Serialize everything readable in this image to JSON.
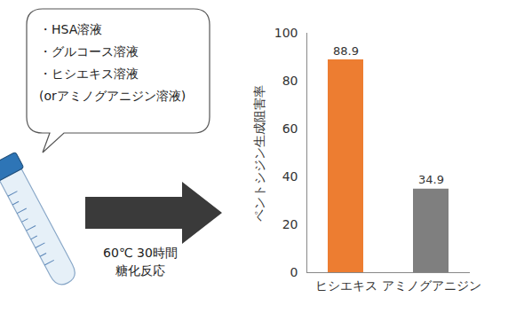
{
  "chart_data": {
    "type": "bar",
    "categories": [
      "ヒシエキス",
      "アミノグアニジン"
    ],
    "values": [
      88.9,
      34.9
    ],
    "colors": [
      "#ed7d31",
      "#7f7f7f"
    ],
    "y_label": "ペントシジン生成阻害率",
    "annotations": [
      "(%)"
    ],
    "ylim": [
      0,
      100
    ],
    "yticks": [
      0,
      20,
      40,
      60,
      80,
      100
    ],
    "grid": false,
    "data_labels": true
  },
  "diagram": {
    "bubble_items": [
      "・HSA溶液",
      "・グルコース溶液",
      "・ヒシエキス溶液",
      "(orアミノグアニジン溶液)"
    ],
    "arrow_label": [
      "60℃ 30時間",
      "糖化反応"
    ]
  }
}
